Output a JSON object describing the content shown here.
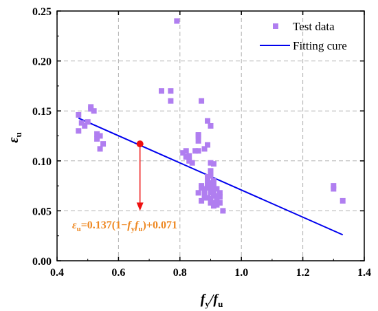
{
  "colors": {
    "marker": "#b07ef0",
    "fit_line": "#0000ee",
    "highlight": "#ee1111",
    "annotation": "#ee8822"
  },
  "chart_data": {
    "type": "scatter",
    "xlabel": {
      "main": "f",
      "sub1": "y",
      "sep": "/f",
      "sub2": "u"
    },
    "ylabel": {
      "main": "ε",
      "sub": "u"
    },
    "xlim": [
      0.4,
      1.4
    ],
    "ylim": [
      0.0,
      0.25
    ],
    "xticks": [
      "0.4",
      "0.6",
      "0.8",
      "1.0",
      "1.2",
      "1.4"
    ],
    "yticks": [
      "0.00",
      "0.05",
      "0.10",
      "0.15",
      "0.20",
      "0.25"
    ],
    "grid": true,
    "legend": {
      "placement": "top-right"
    },
    "series": [
      {
        "name": "Test data",
        "kind": "scatter",
        "x": [
          0.47,
          0.47,
          0.48,
          0.49,
          0.5,
          0.51,
          0.52,
          0.51,
          0.53,
          0.53,
          0.54,
          0.55,
          0.54,
          0.74,
          0.77,
          0.77,
          0.79,
          0.81,
          0.82,
          0.82,
          0.83,
          0.83,
          0.84,
          0.86,
          0.86,
          0.86,
          0.87,
          0.87,
          0.88,
          0.88,
          0.88,
          0.89,
          0.89,
          0.89,
          0.89,
          0.9,
          0.9,
          0.9,
          0.9,
          0.9,
          0.91,
          0.91,
          0.91,
          0.91,
          0.91,
          0.92,
          0.92,
          0.92,
          0.93,
          0.93,
          0.94,
          0.87,
          0.86,
          0.87,
          0.88,
          0.89,
          0.9,
          0.9,
          0.91,
          0.92,
          0.88,
          0.89,
          0.9,
          0.92,
          0.93,
          0.9,
          0.91,
          0.89,
          0.9,
          0.85,
          0.86,
          1.3,
          1.3,
          1.33
        ],
        "y": [
          0.146,
          0.13,
          0.138,
          0.135,
          0.139,
          0.154,
          0.15,
          0.152,
          0.127,
          0.122,
          0.112,
          0.117,
          0.125,
          0.17,
          0.17,
          0.16,
          0.24,
          0.108,
          0.11,
          0.104,
          0.105,
          0.1,
          0.098,
          0.12,
          0.125,
          0.11,
          0.16,
          0.075,
          0.072,
          0.07,
          0.063,
          0.063,
          0.075,
          0.08,
          0.084,
          0.062,
          0.068,
          0.073,
          0.078,
          0.085,
          0.058,
          0.065,
          0.07,
          0.075,
          0.08,
          0.056,
          0.065,
          0.072,
          0.058,
          0.064,
          0.05,
          0.073,
          0.068,
          0.06,
          0.066,
          0.073,
          0.09,
          0.098,
          0.097,
          0.062,
          0.112,
          0.116,
          0.135,
          0.06,
          0.068,
          0.058,
          0.055,
          0.14,
          0.07,
          0.11,
          0.126,
          0.072,
          0.075,
          0.06
        ]
      },
      {
        "name": "Fitting cure",
        "kind": "line",
        "x": [
          0.47,
          1.33
        ],
        "y": [
          0.1428,
          0.026
        ]
      }
    ],
    "highlight_point": {
      "x": 0.67,
      "y": 0.117,
      "arrow_to_y": 0.05
    },
    "annotation": {
      "eps": "ε",
      "eps_sub": "u",
      "part1": "=0.137(1−",
      "f1": "f",
      "f1_sub": "y",
      "f2": "f",
      "f2_sub": "u",
      "part2": ")+0.071"
    }
  }
}
